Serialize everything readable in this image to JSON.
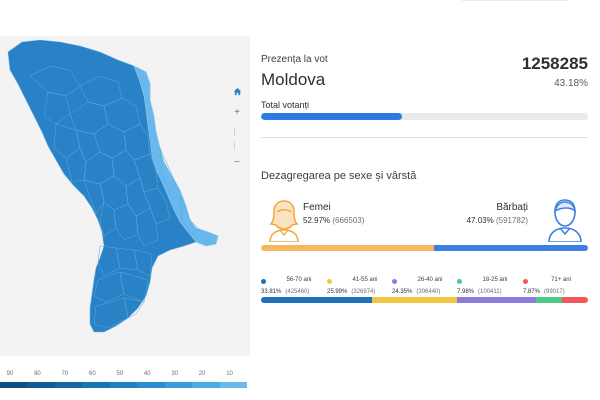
{
  "summary": {
    "label": "Prezența la vot",
    "region": "Moldova",
    "total": "1258285",
    "percent": "43.18%",
    "votanti_label": "Total votanți",
    "turnout_fraction": 0.4318
  },
  "breakdown": {
    "title": "Dezagregarea pe sexe și vârstă",
    "female": {
      "label": "Femei",
      "percent": "52.97%",
      "count": "(666503)",
      "share": 52.97,
      "color": "#f5b85f"
    },
    "male": {
      "label": "Bărbați",
      "percent": "47.03%",
      "count": "(591782)",
      "share": 47.03,
      "color": "#3d7fe0"
    },
    "age_groups": [
      {
        "label": "56-70 ani",
        "percent": "33.81%",
        "count": "(425460)",
        "share": 33.81,
        "color": "#1f6fba"
      },
      {
        "label": "41-55 ani",
        "percent": "25.99%",
        "count": "(326974)",
        "share": 25.99,
        "color": "#f2c540"
      },
      {
        "label": "26-40 ani",
        "percent": "24.35%",
        "count": "(306440)",
        "share": 24.35,
        "color": "#8b7cdc"
      },
      {
        "label": "18-25 ani",
        "percent": "7.98%",
        "count": "(100411)",
        "share": 7.98,
        "color": "#4cc98a"
      },
      {
        "label": "71+ ani",
        "percent": "7.87%",
        "count": "(99017)",
        "share": 7.87,
        "color": "#ef5a5a"
      }
    ]
  },
  "map": {
    "zoom_controls": {
      "home_icon": "home-icon",
      "zoom_in": "+",
      "zoom_out": "−"
    },
    "legend_labels": [
      "90",
      "80",
      "70",
      "60",
      "50",
      "40",
      "30",
      "20",
      "10"
    ],
    "legend_colors": [
      "#0b4f84",
      "#0f5b96",
      "#1467a6",
      "#1a73b4",
      "#2180c2",
      "#2a8dcf",
      "#3a9cdc",
      "#4eabe6",
      "#66bbee"
    ],
    "fill_main": "#2a82c6",
    "fill_east": "#6ab7ee"
  }
}
